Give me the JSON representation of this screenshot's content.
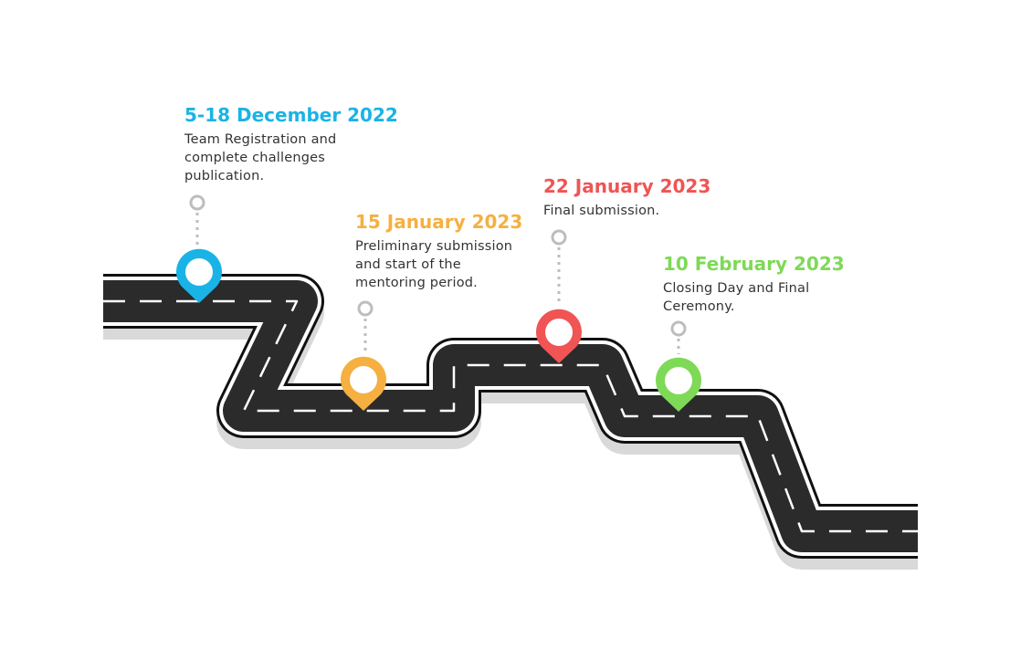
{
  "colors": {
    "road": "#2b2b2b",
    "road_edge": "#ffffff",
    "road_outline": "#111111",
    "road_shadow": "#d9d9d9",
    "dashes": "#ffffff",
    "connector": "#bdbdbd"
  },
  "milestones": [
    {
      "date": "5-18 December 2022",
      "description": "Team Registration and complete challenges publication.",
      "color": "#1ab3e6",
      "icon": "map-pin-icon"
    },
    {
      "date": "15 January 2023",
      "description": "Preliminary submission and start of the mentoring period.",
      "color": "#f5b041",
      "icon": "map-pin-icon"
    },
    {
      "date": "22 January 2023",
      "description": "Final submission.",
      "color": "#f05454",
      "icon": "map-pin-icon"
    },
    {
      "date": "10 February 2023",
      "description": "Closing Day and Final Ceremony.",
      "color": "#7ed957",
      "icon": "map-pin-icon"
    }
  ]
}
